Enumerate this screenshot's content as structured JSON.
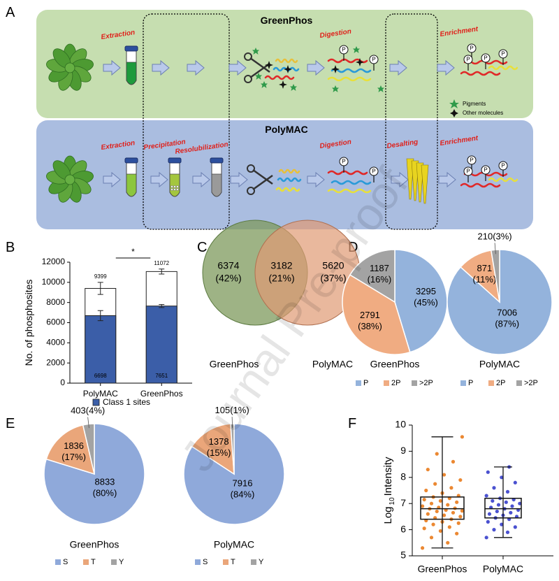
{
  "panel_labels": [
    "A",
    "B",
    "C",
    "D",
    "E",
    "F"
  ],
  "watermark": "Journal Pre-proof",
  "diagram": {
    "rows": [
      {
        "title": "GreenPhos",
        "steps": [
          "Extraction",
          "Digestion",
          "Enrichment"
        ]
      },
      {
        "title": "PolyMAC",
        "steps": [
          "Extraction",
          "Precipitation",
          "Resolubilization",
          "Digestion",
          "Desalting",
          "Enrichment"
        ]
      }
    ],
    "legend": [
      "Pigments",
      "Other molecules"
    ],
    "phospho_label": "P"
  },
  "chart_data": [
    {
      "type": "bar",
      "overlay": true,
      "ylabel": "No. of phosphosites",
      "categories": [
        "PolyMAC",
        "GreenPhos"
      ],
      "ylim": [
        0,
        12000
      ],
      "yticks": [
        0,
        2000,
        4000,
        6000,
        8000,
        10000,
        12000
      ],
      "series": [
        {
          "color": "#ffffff",
          "values": [
            9399,
            11072
          ],
          "errors": [
            600,
            250
          ]
        },
        {
          "name": "Class 1 sites",
          "color": "#3b5ea8",
          "values": [
            6698,
            7651
          ],
          "errors": [
            500,
            150
          ]
        }
      ],
      "significance": "*"
    },
    {
      "type": "venn",
      "sets": [
        "GreenPhos",
        "PolyMAC"
      ],
      "colors": [
        "#7d9a5c",
        "#df9a74"
      ],
      "values": [
        6374,
        3182,
        5620
      ],
      "percent_labels": [
        "(42%)",
        "(21%)",
        "(37%)"
      ]
    },
    {
      "type": "pie",
      "title": "GreenPhos",
      "categories": [
        "P",
        "2P",
        ">2P"
      ],
      "colors": [
        "#94b3dc",
        "#f0ac82",
        "#a3a3a3"
      ],
      "values": [
        3295,
        2791,
        1187
      ],
      "percent_labels": [
        "(45%)",
        "(38%)",
        "(16%)"
      ]
    },
    {
      "type": "pie",
      "title": "PolyMAC",
      "categories": [
        "P",
        "2P",
        ">2P"
      ],
      "colors": [
        "#94b3dc",
        "#f0ac82",
        "#a3a3a3"
      ],
      "values": [
        7006,
        871,
        210
      ],
      "percent_labels": [
        "(87%)",
        "(11%)",
        "(3%)"
      ]
    },
    {
      "type": "pie",
      "title": "GreenPhos",
      "categories": [
        "S",
        "T",
        "Y"
      ],
      "colors": [
        "#8fa9da",
        "#eaa67a",
        "#a3a3a3"
      ],
      "values": [
        8833,
        1836,
        403
      ],
      "percent_labels": [
        "(80%)",
        "(17%)",
        "(4%)"
      ]
    },
    {
      "type": "pie",
      "title": "PolyMAC",
      "categories": [
        "S",
        "T",
        "Y"
      ],
      "colors": [
        "#8fa9da",
        "#eaa67a",
        "#a3a3a3"
      ],
      "values": [
        7916,
        1378,
        105
      ],
      "percent_labels": [
        "(84%)",
        "(15%)",
        "(1%)"
      ]
    },
    {
      "type": "box",
      "ylabel": [
        "Log",
        "10",
        "Intensity"
      ],
      "categories": [
        "GreenPhos",
        "PolyMAC"
      ],
      "colors": [
        "#e8730e",
        "#2a32c8"
      ],
      "ylim": [
        5,
        10
      ],
      "yticks": [
        5,
        6,
        7,
        8,
        9,
        10
      ],
      "boxes": [
        {
          "min": 5.3,
          "q1": 6.4,
          "median": 6.8,
          "q3": 7.25,
          "max": 9.55,
          "points": [
            5.3,
            5.5,
            5.7,
            5.85,
            5.95,
            6.05,
            6.1,
            6.2,
            6.25,
            6.3,
            6.35,
            6.4,
            6.45,
            6.5,
            6.55,
            6.6,
            6.65,
            6.7,
            6.72,
            6.75,
            6.8,
            6.82,
            6.85,
            6.9,
            6.95,
            7.0,
            7.05,
            7.1,
            7.15,
            7.2,
            7.25,
            7.3,
            7.4,
            7.5,
            7.6,
            7.75,
            7.9,
            8.1,
            8.3,
            8.6,
            8.9,
            9.55
          ]
        },
        {
          "min": 5.7,
          "q1": 6.45,
          "median": 6.8,
          "q3": 7.2,
          "max": 8.4,
          "points": [
            5.7,
            5.9,
            6.0,
            6.1,
            6.2,
            6.3,
            6.4,
            6.45,
            6.5,
            6.55,
            6.6,
            6.65,
            6.7,
            6.75,
            6.8,
            6.85,
            6.9,
            6.95,
            7.0,
            7.05,
            7.1,
            7.15,
            7.2,
            7.3,
            7.45,
            7.6,
            7.8,
            8.0,
            8.2,
            8.4
          ]
        }
      ]
    }
  ]
}
